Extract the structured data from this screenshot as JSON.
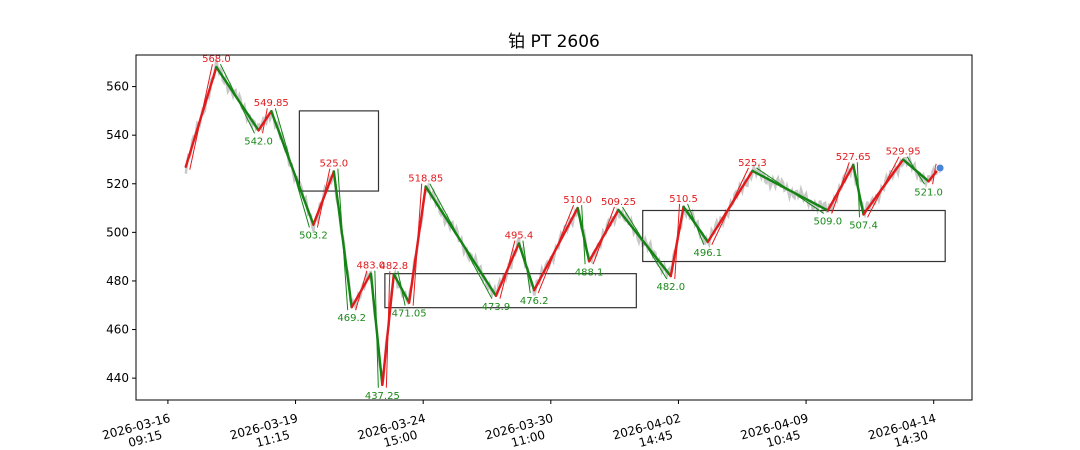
{
  "chart_data": {
    "type": "line",
    "title": "铂 PT 2606",
    "xlabel": "",
    "ylabel": "",
    "ylim": [
      431,
      573
    ],
    "yticks": [
      440,
      460,
      480,
      500,
      520,
      540,
      560
    ],
    "xticks": [
      {
        "date": "2026-03-16",
        "time": "09:15",
        "idx": 0
      },
      {
        "date": "2026-03-19",
        "time": "11:15",
        "idx": 100
      },
      {
        "date": "2026-03-24",
        "time": "15:00",
        "idx": 200
      },
      {
        "date": "2026-03-30",
        "time": "11:00",
        "idx": 300
      },
      {
        "date": "2026-04-02",
        "time": "14:45",
        "idx": 400
      },
      {
        "date": "2026-04-09",
        "time": "10:45",
        "idx": 500
      },
      {
        "date": "2026-04-14",
        "time": "14:30",
        "idx": 600
      }
    ],
    "xlim": [
      -25,
      630
    ],
    "pivots": [
      {
        "idx": 14,
        "value": 527,
        "label": ""
      },
      {
        "idx": 38,
        "value": 568.0,
        "label": "568.0",
        "type": "high"
      },
      {
        "idx": 71,
        "value": 542.0,
        "label": "542.0",
        "type": "low"
      },
      {
        "idx": 81,
        "value": 549.85,
        "label": "549.85",
        "type": "high"
      },
      {
        "idx": 114,
        "value": 503.2,
        "label": "503.2",
        "type": "low"
      },
      {
        "idx": 130,
        "value": 525.0,
        "label": "525.0",
        "type": "high"
      },
      {
        "idx": 144,
        "value": 469.2,
        "label": "469.2",
        "type": "low"
      },
      {
        "idx": 159,
        "value": 483.0,
        "label": "483.0",
        "type": "high"
      },
      {
        "idx": 168,
        "value": 437.25,
        "label": "437.25",
        "type": "low"
      },
      {
        "idx": 177,
        "value": 482.8,
        "label": "482.8",
        "type": "high"
      },
      {
        "idx": 189,
        "value": 471.05,
        "label": "471.05",
        "type": "low"
      },
      {
        "idx": 202,
        "value": 518.85,
        "label": "518.85",
        "type": "high"
      },
      {
        "idx": 257,
        "value": 473.9,
        "label": "473.9",
        "type": "low"
      },
      {
        "idx": 275,
        "value": 495.4,
        "label": "495.4",
        "type": "high"
      },
      {
        "idx": 287,
        "value": 476.2,
        "label": "476.2",
        "type": "low"
      },
      {
        "idx": 321,
        "value": 510.0,
        "label": "510.0",
        "type": "high"
      },
      {
        "idx": 330,
        "value": 488.1,
        "label": "488.1",
        "type": "low"
      },
      {
        "idx": 353,
        "value": 509.25,
        "label": "509.25",
        "type": "high"
      },
      {
        "idx": 394,
        "value": 482.0,
        "label": "482.0",
        "type": "low"
      },
      {
        "idx": 404,
        "value": 510.5,
        "label": "510.5",
        "type": "high"
      },
      {
        "idx": 423,
        "value": 496.1,
        "label": "496.1",
        "type": "low"
      },
      {
        "idx": 458,
        "value": 525.3,
        "label": "525.3",
        "type": "high"
      },
      {
        "idx": 517,
        "value": 509.0,
        "label": "509.0",
        "type": "low"
      },
      {
        "idx": 537,
        "value": 527.65,
        "label": "527.65",
        "type": "high"
      },
      {
        "idx": 545,
        "value": 507.4,
        "label": "507.4",
        "type": "low"
      },
      {
        "idx": 576,
        "value": 529.95,
        "label": "529.95",
        "type": "high"
      },
      {
        "idx": 596,
        "value": 521.0,
        "label": "521.0",
        "type": "low"
      },
      {
        "idx": 605,
        "value": 527,
        "label": ""
      }
    ],
    "boxes": [
      {
        "x0": 103,
        "x1": 165,
        "y0": 517,
        "y1": 550
      },
      {
        "x0": 170,
        "x1": 367,
        "y0": 469,
        "y1": 483
      },
      {
        "x0": 372,
        "x1": 609,
        "y0": 488,
        "y1": 509
      }
    ],
    "end_marker": {
      "idx": 605,
      "value": 526.5
    },
    "colors": {
      "up": "#e31a1c",
      "down": "#138413",
      "price": "#c8c8c8",
      "box": "#333333",
      "marker": "#4a84d4"
    },
    "grid": false,
    "legend": "none"
  }
}
